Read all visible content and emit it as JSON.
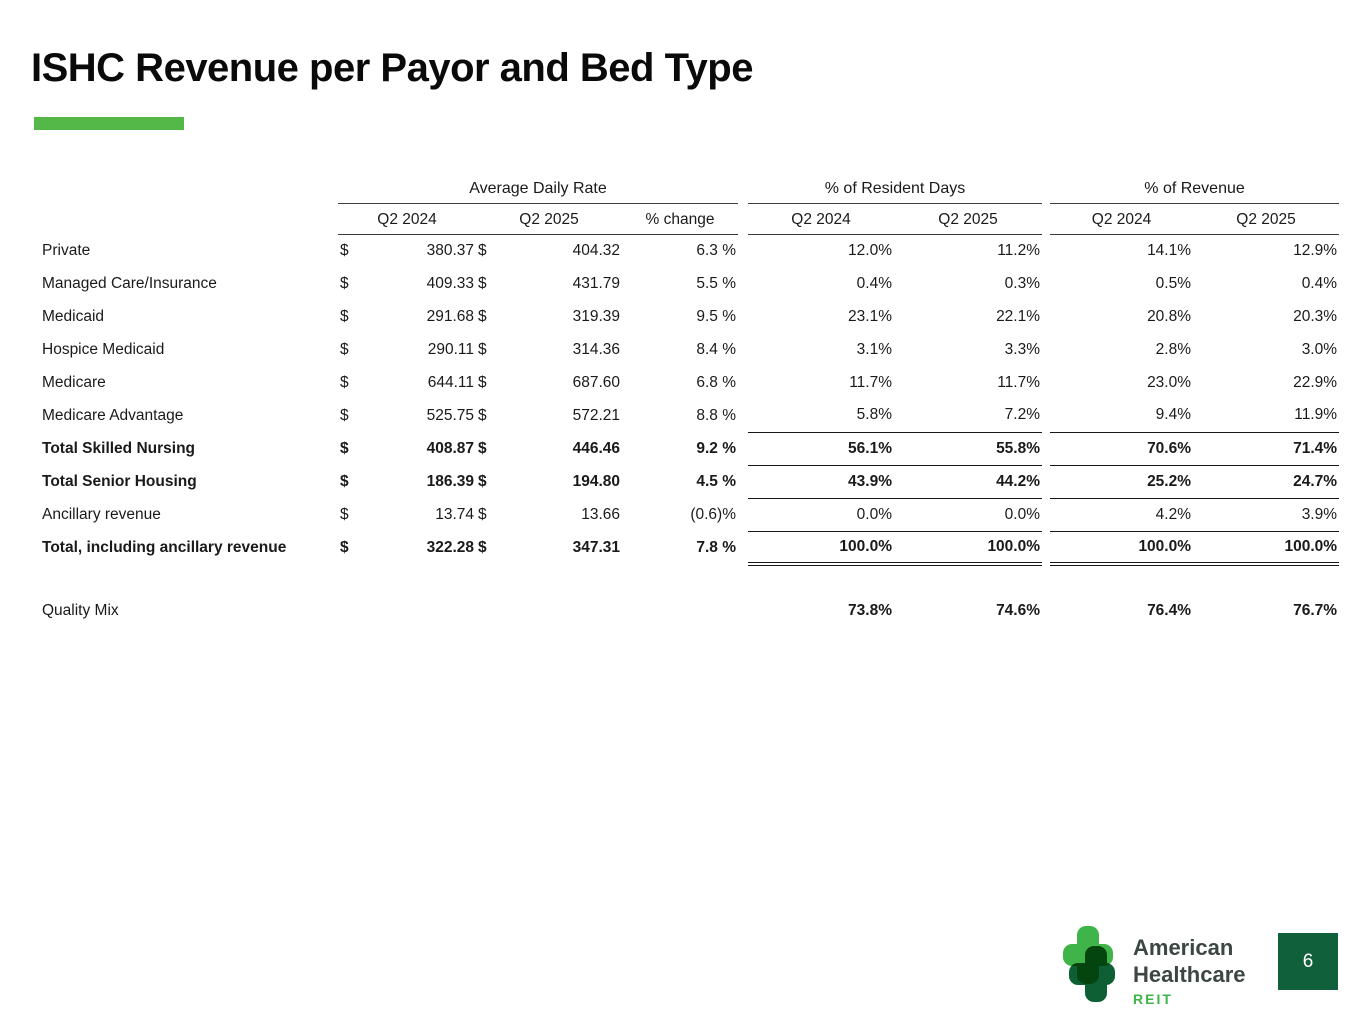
{
  "slide": {
    "title": "ISHC Revenue per Payor and Bed Type"
  },
  "table": {
    "currency_symbol": "$",
    "group_headers": [
      "Average Daily Rate",
      "% of Resident Days",
      "% of Revenue"
    ],
    "sub_headers": {
      "adr": [
        "Q2 2024",
        "Q2 2025",
        "% change"
      ],
      "resident_days": [
        "Q2 2024",
        "Q2 2025"
      ],
      "revenue": [
        "Q2 2024",
        "Q2 2025"
      ]
    },
    "rows": [
      {
        "label": "Private",
        "bold": false,
        "pct_underline": false,
        "pct_double": false,
        "adr_2024": "380.37",
        "adr_2025": "404.32",
        "change": "6.3 %",
        "rd_2024": "12.0%",
        "rd_2025": "11.2%",
        "rev_2024": "14.1%",
        "rev_2025": "12.9%"
      },
      {
        "label": "Managed Care/Insurance",
        "bold": false,
        "pct_underline": false,
        "pct_double": false,
        "adr_2024": "409.33",
        "adr_2025": "431.79",
        "change": "5.5 %",
        "rd_2024": "0.4%",
        "rd_2025": "0.3%",
        "rev_2024": "0.5%",
        "rev_2025": "0.4%"
      },
      {
        "label": "Medicaid",
        "bold": false,
        "pct_underline": false,
        "pct_double": false,
        "adr_2024": "291.68",
        "adr_2025": "319.39",
        "change": "9.5 %",
        "rd_2024": "23.1%",
        "rd_2025": "22.1%",
        "rev_2024": "20.8%",
        "rev_2025": "20.3%"
      },
      {
        "label": "Hospice Medicaid",
        "bold": false,
        "pct_underline": false,
        "pct_double": false,
        "adr_2024": "290.11",
        "adr_2025": "314.36",
        "change": "8.4 %",
        "rd_2024": "3.1%",
        "rd_2025": "3.3%",
        "rev_2024": "2.8%",
        "rev_2025": "3.0%"
      },
      {
        "label": "Medicare",
        "bold": false,
        "pct_underline": false,
        "pct_double": false,
        "adr_2024": "644.11",
        "adr_2025": "687.60",
        "change": "6.8 %",
        "rd_2024": "11.7%",
        "rd_2025": "11.7%",
        "rev_2024": "23.0%",
        "rev_2025": "22.9%"
      },
      {
        "label": "Medicare Advantage",
        "bold": false,
        "pct_underline": true,
        "pct_double": false,
        "adr_2024": "525.75",
        "adr_2025": "572.21",
        "change": "8.8 %",
        "rd_2024": "5.8%",
        "rd_2025": "7.2%",
        "rev_2024": "9.4%",
        "rev_2025": "11.9%"
      },
      {
        "label": "Total Skilled Nursing",
        "bold": true,
        "pct_underline": true,
        "pct_double": false,
        "adr_2024": "408.87",
        "adr_2025": "446.46",
        "change": "9.2 %",
        "rd_2024": "56.1%",
        "rd_2025": "55.8%",
        "rev_2024": "70.6%",
        "rev_2025": "71.4%"
      },
      {
        "label": "Total Senior Housing",
        "bold": true,
        "pct_underline": true,
        "pct_double": false,
        "adr_2024": "186.39",
        "adr_2025": "194.80",
        "change": "4.5 %",
        "rd_2024": "43.9%",
        "rd_2025": "44.2%",
        "rev_2024": "25.2%",
        "rev_2025": "24.7%"
      },
      {
        "label": "Ancillary revenue",
        "bold": false,
        "pct_underline": true,
        "pct_double": false,
        "adr_2024": "13.74",
        "adr_2025": "13.66",
        "change": "(0.6)%",
        "rd_2024": "0.0%",
        "rd_2025": "0.0%",
        "rev_2024": "4.2%",
        "rev_2025": "3.9%"
      },
      {
        "label": "Total, including ancillary revenue",
        "bold": true,
        "pct_underline": false,
        "pct_double": true,
        "adr_2024": "322.28",
        "adr_2025": "347.31",
        "change": "7.8 %",
        "rd_2024": "100.0%",
        "rd_2025": "100.0%",
        "rev_2024": "100.0%",
        "rev_2025": "100.0%"
      }
    ],
    "quality_mix": {
      "label": "Quality Mix",
      "values": [
        "73.8%",
        "74.6%",
        "76.4%",
        "76.7%"
      ]
    }
  },
  "footer": {
    "logo_icon": "american-healthcare-cross-icon",
    "brand_line1": "American",
    "brand_line2": "Healthcare",
    "brand_reit": "REIT",
    "page_number": "6"
  },
  "colors": {
    "accent_green": "#53b848",
    "logo_light_green": "#3fb549",
    "logo_dark_green": "#0e5f33",
    "page_box_green": "#11603c",
    "text": "#1a1a1a"
  }
}
